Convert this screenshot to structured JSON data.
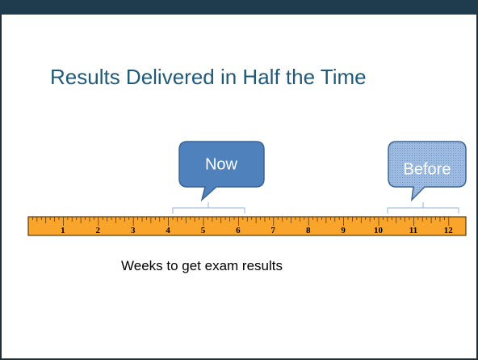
{
  "header": {
    "title": "Results Delivered in Half the Time"
  },
  "callouts": [
    {
      "label": "Now"
    },
    {
      "label": "Before"
    }
  ],
  "ruler": {
    "labels": [
      "1",
      "2",
      "3",
      "4",
      "5",
      "6",
      "7",
      "8",
      "9",
      "10",
      "11",
      "12"
    ]
  },
  "caption": "Weeks to get exam results"
}
